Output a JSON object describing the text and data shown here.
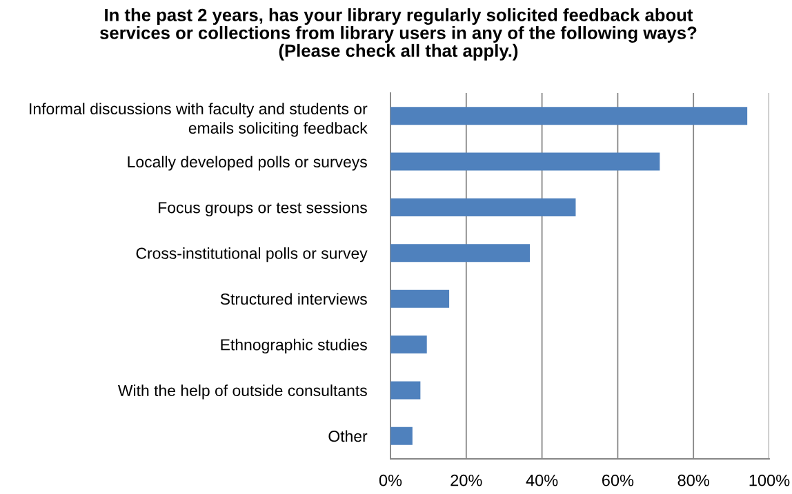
{
  "chart_data": {
    "type": "bar",
    "orientation": "horizontal",
    "title": "In the past 2 years, has your library regularly solicited feedback about services or collections from library users in any of the following ways? (Please check all that apply.)",
    "categories": [
      "Informal discussions with faculty and students or emails soliciting feedback",
      "Locally developed polls or surveys",
      "Focus groups or test sessions",
      "Cross-institutional polls or survey",
      "Structured interviews",
      "Ethnographic studies",
      "With the help of outside consultants",
      "Other"
    ],
    "values": [
      94.2,
      71.1,
      48.9,
      36.8,
      15.5,
      9.6,
      7.9,
      5.8
    ],
    "color": "#4f81bd",
    "xlim": [
      0,
      100
    ],
    "xticks": [
      {
        "value": 0,
        "label": "0%"
      },
      {
        "value": 20,
        "label": "20%"
      },
      {
        "value": 40,
        "label": "40%"
      },
      {
        "value": 60,
        "label": "60%"
      },
      {
        "value": 80,
        "label": "80%"
      },
      {
        "value": 100,
        "label": "100%"
      }
    ],
    "grid": "x"
  }
}
